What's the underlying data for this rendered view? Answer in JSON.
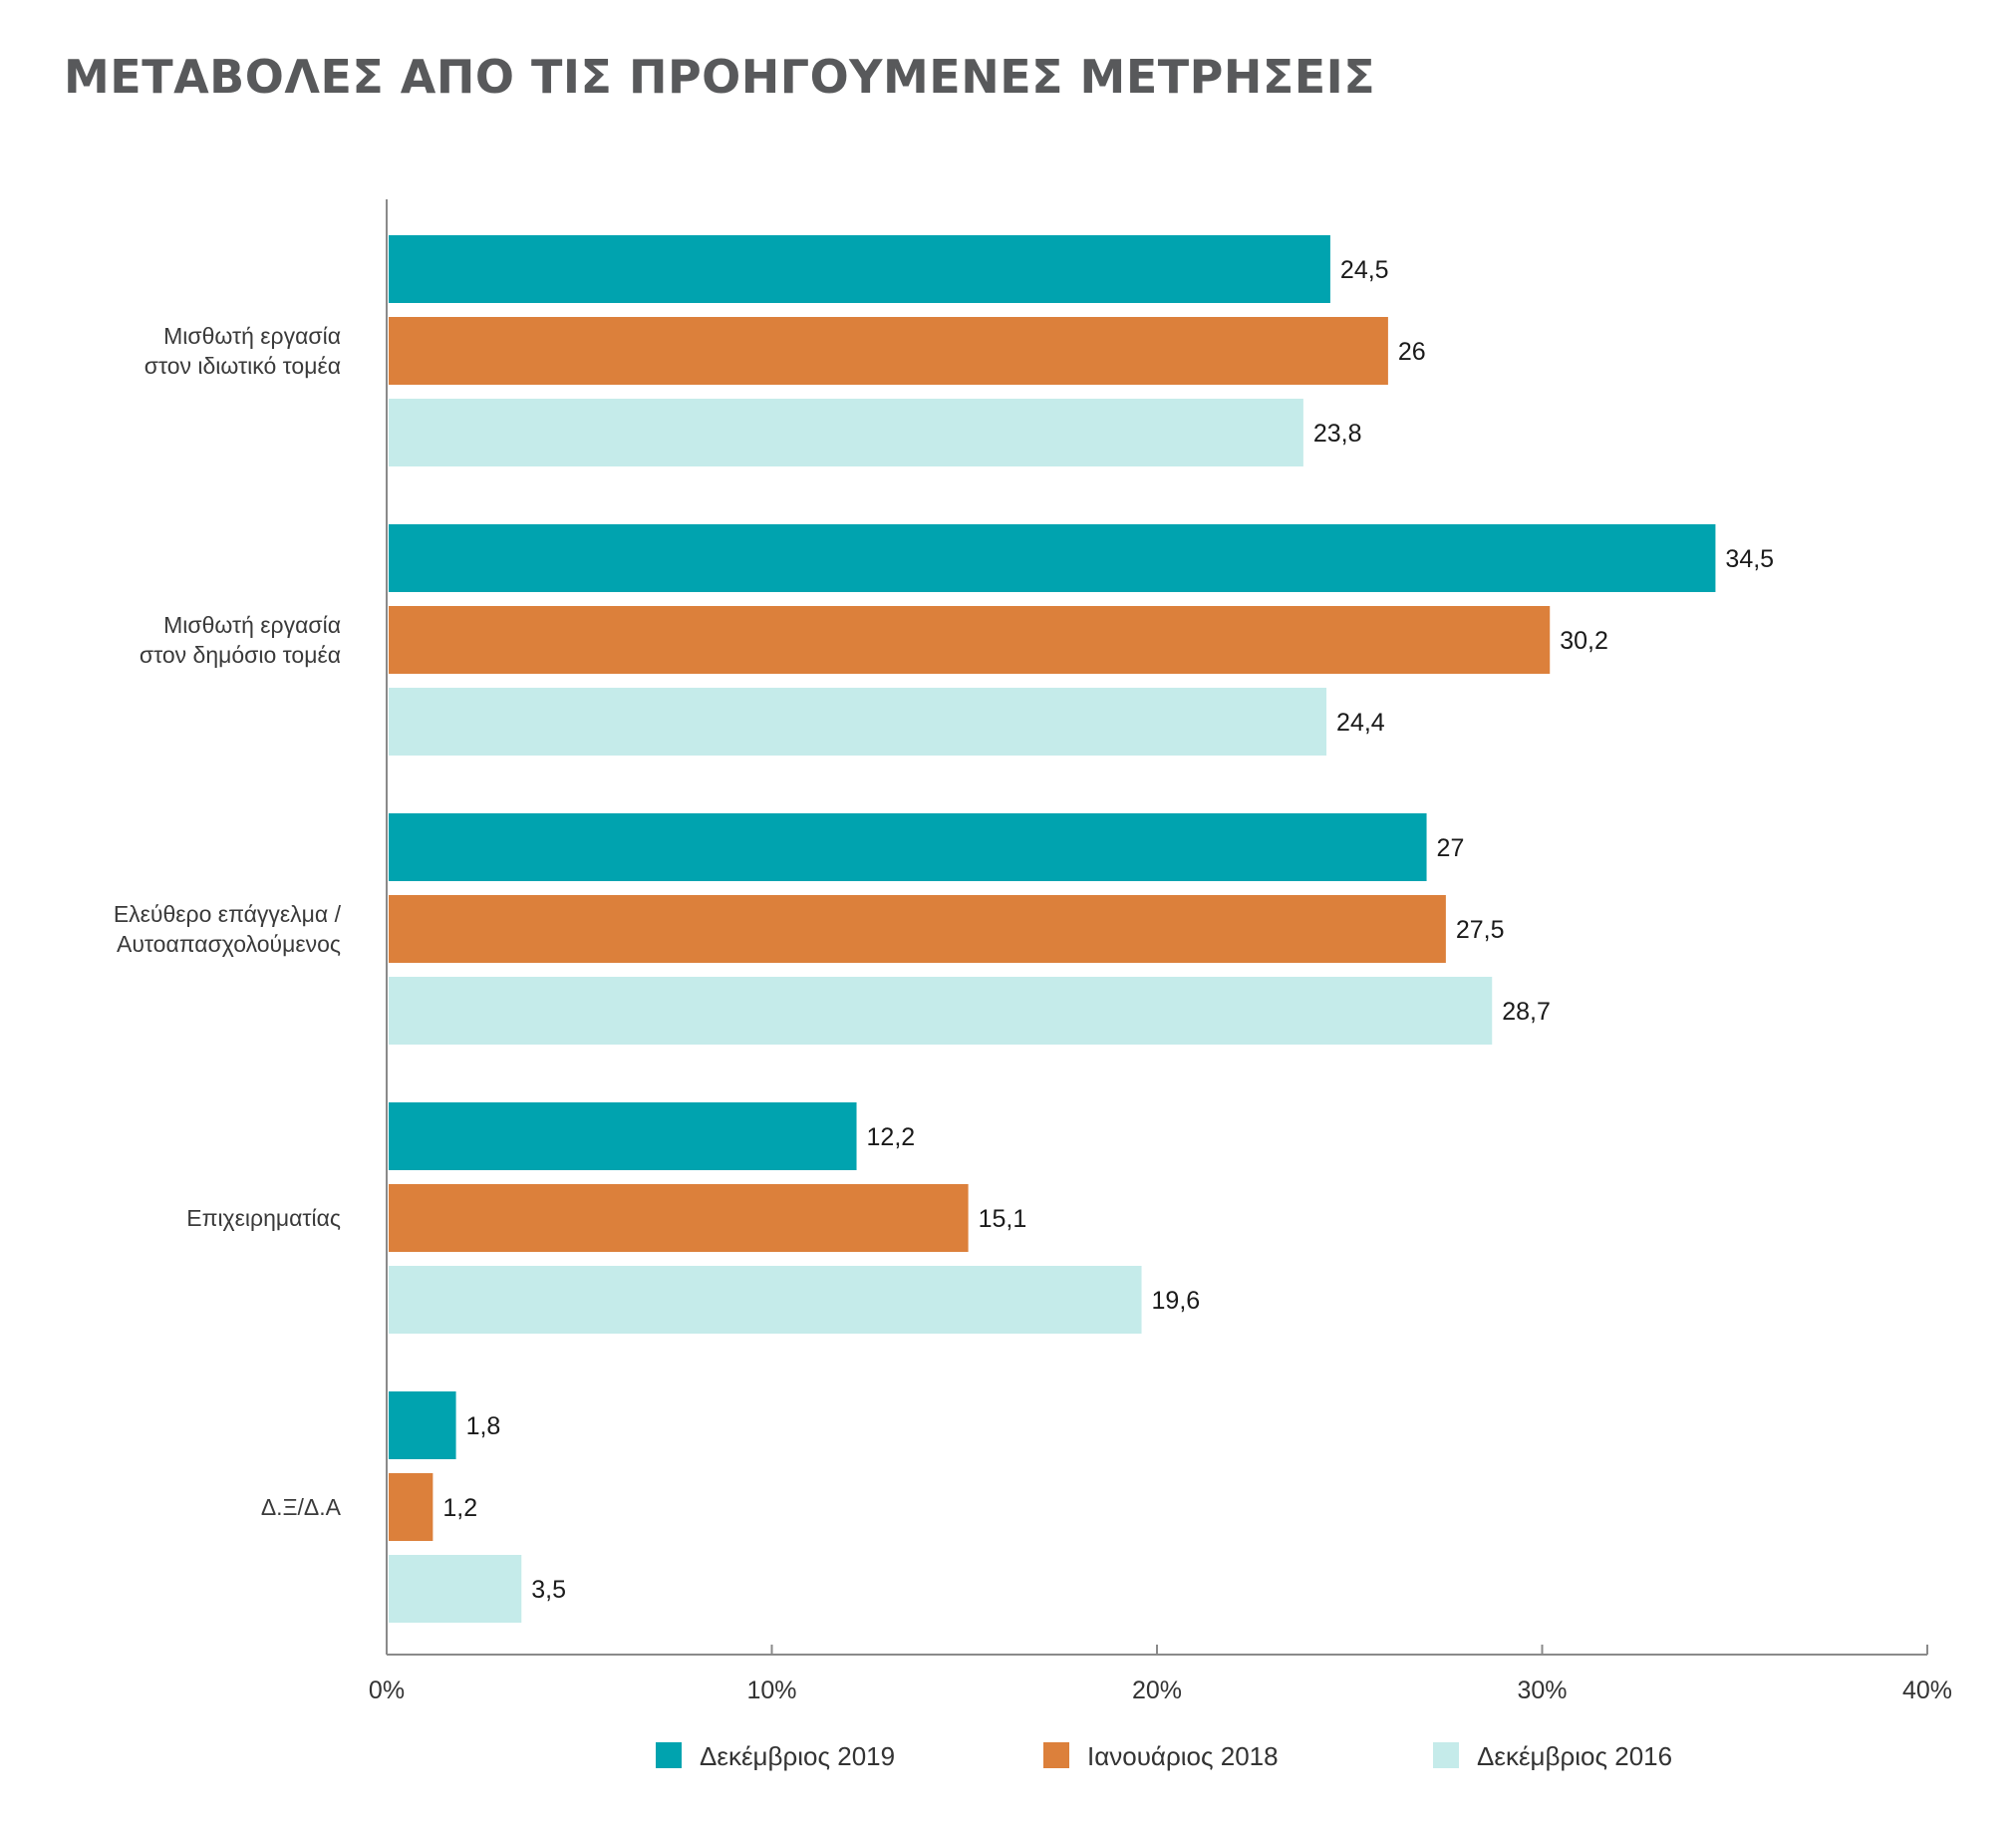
{
  "chart_data": {
    "type": "bar",
    "orientation": "horizontal",
    "title": "ΜΕΤΑΒΟΛΕΣ ΑΠΟ ΤΙΣ ΠΡΟΗΓΟΥΜΕΝΕΣ ΜΕΤΡΗΣΕΙΣ",
    "categories": [
      [
        "Μισθωτή εργασία",
        "στον ιδιωτικό τομέα"
      ],
      [
        "Μισθωτή εργασία",
        "στον δημόσιο τομέα"
      ],
      [
        "Ελεύθερο επάγγελμα /",
        "Αυτοαπασχολούμενος"
      ],
      [
        "Επιχειρηματίας"
      ],
      [
        "Δ.Ξ/Δ.Α"
      ]
    ],
    "series": [
      {
        "name": "Δεκέμβριος 2019",
        "color": "#00a3af",
        "values": [
          24.5,
          34.5,
          27,
          12.2,
          1.8
        ],
        "value_labels": [
          "24,5",
          "34,5",
          "27",
          "12,2",
          "1,8"
        ]
      },
      {
        "name": "Ιανουάριος 2018",
        "color": "#dc803b",
        "values": [
          26,
          30.2,
          27.5,
          15.1,
          1.2
        ],
        "value_labels": [
          "26",
          "30,2",
          "27,5",
          "15,1",
          "1,2"
        ]
      },
      {
        "name": "Δεκέμβριος 2016",
        "color": "#c5ebea",
        "values": [
          23.8,
          24.4,
          28.7,
          19.6,
          3.5
        ],
        "value_labels": [
          "23,8",
          "24,4",
          "28,7",
          "19,6",
          "3,5"
        ]
      }
    ],
    "xlim": [
      0,
      40
    ],
    "xticks": [
      {
        "value": 0,
        "label": "0%"
      },
      {
        "value": 10,
        "label": "10%"
      },
      {
        "value": 20,
        "label": "20%"
      },
      {
        "value": 30,
        "label": "30%"
      },
      {
        "value": 40,
        "label": "40%"
      }
    ],
    "xlabel": "",
    "ylabel": "",
    "grid": false,
    "legend_position": "bottom"
  }
}
